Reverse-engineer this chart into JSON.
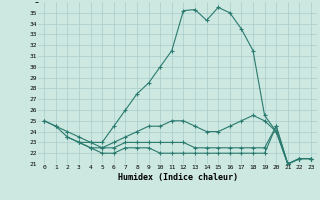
{
  "xlabel": "Humidex (Indice chaleur)",
  "bg_color": "#cce8e0",
  "grid_color": "#aacccc",
  "line_color": "#2a7a6f",
  "xlim": [
    -0.5,
    23.5
  ],
  "ylim": [
    21,
    36
  ],
  "x": [
    0,
    1,
    2,
    3,
    4,
    5,
    6,
    7,
    8,
    9,
    10,
    11,
    12,
    13,
    14,
    15,
    16,
    17,
    18,
    19,
    20,
    21,
    22,
    23
  ],
  "main_line": [
    25.0,
    24.5,
    24.0,
    23.5,
    23.0,
    23.0,
    24.5,
    26.0,
    27.5,
    28.5,
    30.0,
    31.5,
    35.2,
    35.3,
    34.3,
    35.5,
    35.0,
    33.5,
    31.5,
    25.5,
    24.0,
    21.0,
    21.5,
    21.5
  ],
  "line2": [
    25.0,
    24.5,
    23.5,
    23.0,
    23.0,
    22.5,
    23.0,
    23.5,
    24.0,
    24.5,
    24.5,
    25.0,
    25.0,
    24.5,
    24.0,
    24.0,
    24.5,
    25.0,
    25.5,
    25.0,
    24.0,
    21.0,
    21.5,
    21.5
  ],
  "line3": [
    null,
    null,
    23.5,
    23.0,
    22.5,
    22.5,
    22.5,
    23.0,
    23.0,
    23.0,
    23.0,
    23.0,
    23.0,
    22.5,
    22.5,
    22.5,
    22.5,
    22.5,
    22.5,
    22.5,
    24.5,
    21.0,
    21.5,
    21.5
  ],
  "line4": [
    null,
    null,
    null,
    23.0,
    22.5,
    22.0,
    22.0,
    22.5,
    22.5,
    22.5,
    22.0,
    22.0,
    22.0,
    22.0,
    22.0,
    22.0,
    22.0,
    22.0,
    22.0,
    22.0,
    24.5,
    21.0,
    21.5,
    21.5
  ],
  "yticks": [
    21,
    22,
    23,
    24,
    25,
    26,
    27,
    28,
    29,
    30,
    31,
    32,
    33,
    34,
    35
  ],
  "xticks": [
    0,
    1,
    2,
    3,
    4,
    5,
    6,
    7,
    8,
    9,
    10,
    11,
    12,
    13,
    14,
    15,
    16,
    17,
    18,
    19,
    20,
    21,
    22,
    23
  ]
}
